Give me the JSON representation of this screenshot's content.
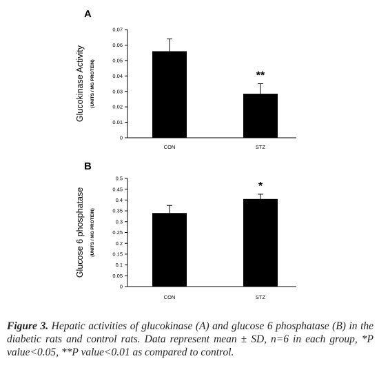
{
  "chart_data": [
    {
      "type": "bar",
      "panel_label": "A",
      "ylabel": "Glucokinase Activity",
      "ylabel_units": "(UNITS / MG PROTEIN)",
      "categories": [
        "CON",
        "STZ"
      ],
      "values": [
        0.056,
        0.0285
      ],
      "errors": [
        0.008,
        0.0065
      ],
      "significance": [
        "",
        "**"
      ],
      "ylim": [
        0,
        0.07
      ],
      "yticks": [
        0,
        0.01,
        0.02,
        0.03,
        0.04,
        0.05,
        0.06,
        0.07
      ],
      "ytick_labels": [
        "0",
        "0.01",
        "0.02",
        "0.03",
        "0.04",
        "0.05",
        "0.06",
        "0.07"
      ],
      "grid": false,
      "bar_color": "#000000"
    },
    {
      "type": "bar",
      "panel_label": "B",
      "ylabel": "Glucose 6 phosphatase",
      "ylabel_units": "(UNITS / MG PROTEIN)",
      "categories": [
        "CON",
        "STZ"
      ],
      "values": [
        0.34,
        0.405
      ],
      "errors": [
        0.035,
        0.022
      ],
      "significance": [
        "",
        "*"
      ],
      "ylim": [
        0,
        0.5
      ],
      "yticks": [
        0,
        0.05,
        0.1,
        0.15,
        0.2,
        0.25,
        0.3,
        0.35,
        0.4,
        0.45,
        0.5
      ],
      "ytick_labels": [
        "0",
        "0.05",
        "0.1",
        "0.15",
        "0.2",
        "0.25",
        "0.3",
        "0.35",
        "0.4",
        "0.45",
        "0.5"
      ],
      "grid": false,
      "bar_color": "#000000"
    }
  ],
  "caption": {
    "label": "Figure 3.",
    "text": "Hepatic activities of glucokinase (A) and glucose 6 phosphatase (B) in the diabetic rats and control rats. Data represent mean ± SD, n=6 in each group, *P value<0.05, **P value<0.01 as compared to control."
  }
}
